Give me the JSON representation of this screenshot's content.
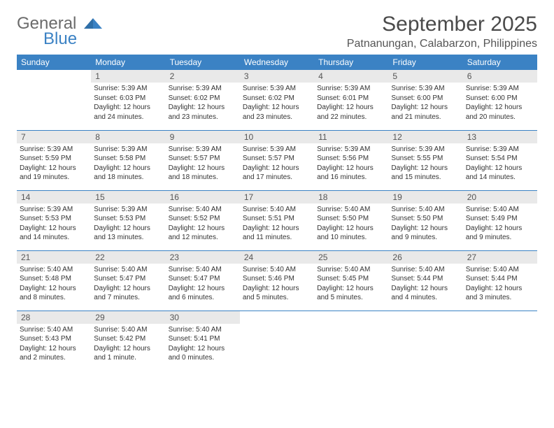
{
  "brand": {
    "name_gray": "General",
    "name_blue": "Blue"
  },
  "title": "September 2025",
  "location": "Patnanungan, Calabarzon, Philippines",
  "colors": {
    "header_bg": "#3b82c4",
    "header_fg": "#ffffff",
    "daynum_bg": "#e9e9e9",
    "row_divider": "#3b82c4",
    "text": "#333333",
    "logo_gray": "#6b6b6b",
    "logo_blue": "#3b82c4"
  },
  "day_headers": [
    "Sunday",
    "Monday",
    "Tuesday",
    "Wednesday",
    "Thursday",
    "Friday",
    "Saturday"
  ],
  "weeks": [
    [
      {
        "n": "",
        "sr": "",
        "ss": "",
        "dl": ""
      },
      {
        "n": "1",
        "sr": "Sunrise: 5:39 AM",
        "ss": "Sunset: 6:03 PM",
        "dl": "Daylight: 12 hours and 24 minutes."
      },
      {
        "n": "2",
        "sr": "Sunrise: 5:39 AM",
        "ss": "Sunset: 6:02 PM",
        "dl": "Daylight: 12 hours and 23 minutes."
      },
      {
        "n": "3",
        "sr": "Sunrise: 5:39 AM",
        "ss": "Sunset: 6:02 PM",
        "dl": "Daylight: 12 hours and 23 minutes."
      },
      {
        "n": "4",
        "sr": "Sunrise: 5:39 AM",
        "ss": "Sunset: 6:01 PM",
        "dl": "Daylight: 12 hours and 22 minutes."
      },
      {
        "n": "5",
        "sr": "Sunrise: 5:39 AM",
        "ss": "Sunset: 6:00 PM",
        "dl": "Daylight: 12 hours and 21 minutes."
      },
      {
        "n": "6",
        "sr": "Sunrise: 5:39 AM",
        "ss": "Sunset: 6:00 PM",
        "dl": "Daylight: 12 hours and 20 minutes."
      }
    ],
    [
      {
        "n": "7",
        "sr": "Sunrise: 5:39 AM",
        "ss": "Sunset: 5:59 PM",
        "dl": "Daylight: 12 hours and 19 minutes."
      },
      {
        "n": "8",
        "sr": "Sunrise: 5:39 AM",
        "ss": "Sunset: 5:58 PM",
        "dl": "Daylight: 12 hours and 18 minutes."
      },
      {
        "n": "9",
        "sr": "Sunrise: 5:39 AM",
        "ss": "Sunset: 5:57 PM",
        "dl": "Daylight: 12 hours and 18 minutes."
      },
      {
        "n": "10",
        "sr": "Sunrise: 5:39 AM",
        "ss": "Sunset: 5:57 PM",
        "dl": "Daylight: 12 hours and 17 minutes."
      },
      {
        "n": "11",
        "sr": "Sunrise: 5:39 AM",
        "ss": "Sunset: 5:56 PM",
        "dl": "Daylight: 12 hours and 16 minutes."
      },
      {
        "n": "12",
        "sr": "Sunrise: 5:39 AM",
        "ss": "Sunset: 5:55 PM",
        "dl": "Daylight: 12 hours and 15 minutes."
      },
      {
        "n": "13",
        "sr": "Sunrise: 5:39 AM",
        "ss": "Sunset: 5:54 PM",
        "dl": "Daylight: 12 hours and 14 minutes."
      }
    ],
    [
      {
        "n": "14",
        "sr": "Sunrise: 5:39 AM",
        "ss": "Sunset: 5:53 PM",
        "dl": "Daylight: 12 hours and 14 minutes."
      },
      {
        "n": "15",
        "sr": "Sunrise: 5:39 AM",
        "ss": "Sunset: 5:53 PM",
        "dl": "Daylight: 12 hours and 13 minutes."
      },
      {
        "n": "16",
        "sr": "Sunrise: 5:40 AM",
        "ss": "Sunset: 5:52 PM",
        "dl": "Daylight: 12 hours and 12 minutes."
      },
      {
        "n": "17",
        "sr": "Sunrise: 5:40 AM",
        "ss": "Sunset: 5:51 PM",
        "dl": "Daylight: 12 hours and 11 minutes."
      },
      {
        "n": "18",
        "sr": "Sunrise: 5:40 AM",
        "ss": "Sunset: 5:50 PM",
        "dl": "Daylight: 12 hours and 10 minutes."
      },
      {
        "n": "19",
        "sr": "Sunrise: 5:40 AM",
        "ss": "Sunset: 5:50 PM",
        "dl": "Daylight: 12 hours and 9 minutes."
      },
      {
        "n": "20",
        "sr": "Sunrise: 5:40 AM",
        "ss": "Sunset: 5:49 PM",
        "dl": "Daylight: 12 hours and 9 minutes."
      }
    ],
    [
      {
        "n": "21",
        "sr": "Sunrise: 5:40 AM",
        "ss": "Sunset: 5:48 PM",
        "dl": "Daylight: 12 hours and 8 minutes."
      },
      {
        "n": "22",
        "sr": "Sunrise: 5:40 AM",
        "ss": "Sunset: 5:47 PM",
        "dl": "Daylight: 12 hours and 7 minutes."
      },
      {
        "n": "23",
        "sr": "Sunrise: 5:40 AM",
        "ss": "Sunset: 5:47 PM",
        "dl": "Daylight: 12 hours and 6 minutes."
      },
      {
        "n": "24",
        "sr": "Sunrise: 5:40 AM",
        "ss": "Sunset: 5:46 PM",
        "dl": "Daylight: 12 hours and 5 minutes."
      },
      {
        "n": "25",
        "sr": "Sunrise: 5:40 AM",
        "ss": "Sunset: 5:45 PM",
        "dl": "Daylight: 12 hours and 5 minutes."
      },
      {
        "n": "26",
        "sr": "Sunrise: 5:40 AM",
        "ss": "Sunset: 5:44 PM",
        "dl": "Daylight: 12 hours and 4 minutes."
      },
      {
        "n": "27",
        "sr": "Sunrise: 5:40 AM",
        "ss": "Sunset: 5:44 PM",
        "dl": "Daylight: 12 hours and 3 minutes."
      }
    ],
    [
      {
        "n": "28",
        "sr": "Sunrise: 5:40 AM",
        "ss": "Sunset: 5:43 PM",
        "dl": "Daylight: 12 hours and 2 minutes."
      },
      {
        "n": "29",
        "sr": "Sunrise: 5:40 AM",
        "ss": "Sunset: 5:42 PM",
        "dl": "Daylight: 12 hours and 1 minute."
      },
      {
        "n": "30",
        "sr": "Sunrise: 5:40 AM",
        "ss": "Sunset: 5:41 PM",
        "dl": "Daylight: 12 hours and 0 minutes."
      },
      {
        "n": "",
        "sr": "",
        "ss": "",
        "dl": ""
      },
      {
        "n": "",
        "sr": "",
        "ss": "",
        "dl": ""
      },
      {
        "n": "",
        "sr": "",
        "ss": "",
        "dl": ""
      },
      {
        "n": "",
        "sr": "",
        "ss": "",
        "dl": ""
      }
    ]
  ]
}
